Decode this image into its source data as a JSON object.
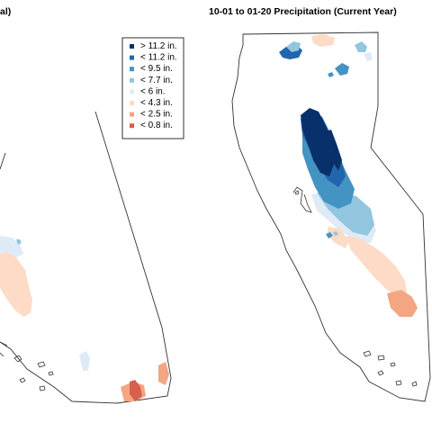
{
  "maps": [
    {
      "id": "left",
      "title_fragment": "al)"
    },
    {
      "id": "right",
      "title": "10-01 to 01-20 Precipitation (Current Year)"
    }
  ],
  "legend": [
    {
      "label": "> 11.2 in.",
      "color": "#08306b"
    },
    {
      "label": "< 11.2 in.",
      "color": "#2166ac"
    },
    {
      "label": "< 9.5 in.",
      "color": "#4393c3"
    },
    {
      "label": "< 7.7 in.",
      "color": "#92c5de"
    },
    {
      "label": "< 6 in.",
      "color": "#deebf7"
    },
    {
      "label": "< 4.3 in.",
      "color": "#fddbc7"
    },
    {
      "label": "< 2.5 in.",
      "color": "#f4a582"
    },
    {
      "label": "< 0.8 in.",
      "color": "#d6604d"
    }
  ]
}
